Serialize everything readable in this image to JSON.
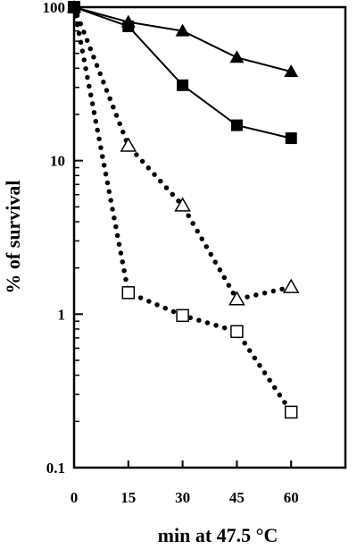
{
  "chart_data": {
    "type": "line",
    "title": "",
    "xlabel": "min at 47.5 °C",
    "ylabel": "% of survival",
    "y_scale": "log",
    "xlim": [
      0,
      75
    ],
    "ylim": [
      0.1,
      100
    ],
    "x_ticks": [
      0,
      15,
      30,
      45,
      60
    ],
    "x_tick_labels": [
      "0",
      "15",
      "30",
      "45",
      "60"
    ],
    "y_ticks": [
      0.1,
      1,
      10,
      100
    ],
    "y_tick_labels": [
      "0.1",
      "1",
      "10",
      "100"
    ],
    "grid": false,
    "legend": "none",
    "series": [
      {
        "marker": "filled-triangle",
        "line_style": "solid",
        "color": "#000000",
        "x": [
          0,
          15,
          30,
          45,
          60
        ],
        "y": [
          100,
          80,
          70,
          47,
          38
        ]
      },
      {
        "marker": "filled-square",
        "line_style": "solid",
        "color": "#000000",
        "x": [
          0,
          15,
          30,
          45,
          60
        ],
        "y": [
          100,
          75,
          31,
          17,
          14
        ]
      },
      {
        "marker": "open-triangle",
        "line_style": "dotted",
        "color": "#000000",
        "x": [
          0,
          15,
          30,
          45,
          60
        ],
        "y": [
          100,
          12.5,
          5.1,
          1.25,
          1.5
        ]
      },
      {
        "marker": "open-square",
        "line_style": "dotted",
        "color": "#000000",
        "x": [
          0,
          15,
          30,
          45,
          60
        ],
        "y": [
          100,
          1.38,
          0.98,
          0.77,
          0.23
        ]
      }
    ]
  }
}
